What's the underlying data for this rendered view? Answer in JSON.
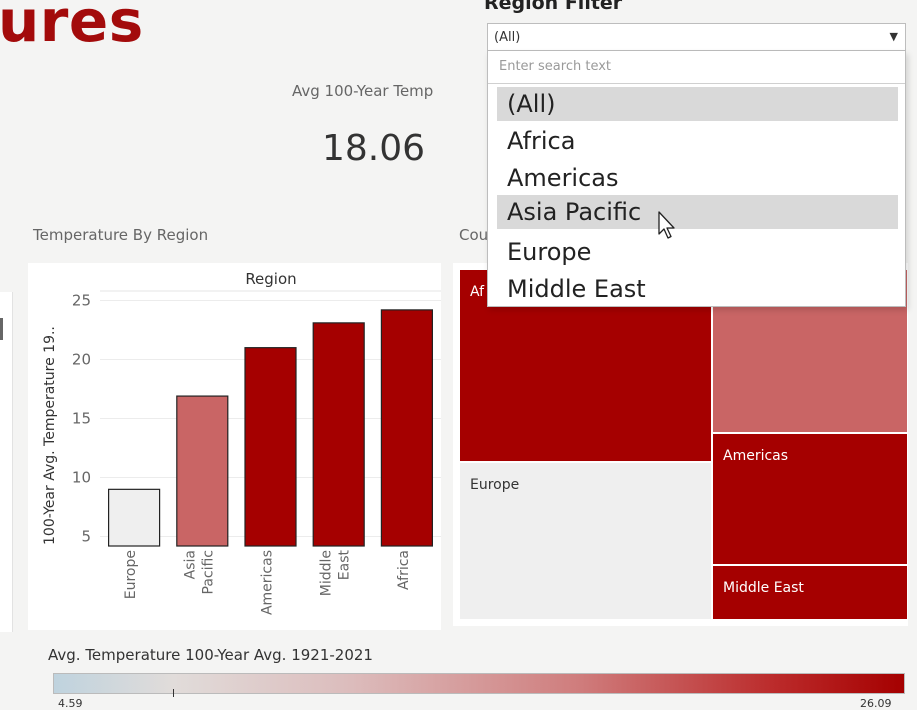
{
  "page": {
    "title_fragment": "ures"
  },
  "kpi": {
    "label": "Avg 100-Year Temp",
    "value": "18.06"
  },
  "bar_section": {
    "title": "Temperature By Region",
    "header": "Region",
    "y_axis_label": "100-Year Avg. Temperature 19.."
  },
  "treemap_section": {
    "title_fragment": "Cou"
  },
  "filter": {
    "title": "Region Filter",
    "selected": "(All)",
    "search_placeholder": "Enter search text",
    "options": [
      "(All)",
      "Africa",
      "Americas",
      "Asia Pacific",
      "Europe",
      "Middle East"
    ],
    "hovered": "Asia Pacific"
  },
  "legend": {
    "title": "Avg. Temperature 100-Year Avg. 1921-2021",
    "min_label": "4.59",
    "max_label": "26.09"
  },
  "colors": {
    "brand": "#a30b0b",
    "dark_red": "#a50000",
    "mid_red": "#c96565",
    "light": "#efefef"
  },
  "chart_data": [
    {
      "type": "bar",
      "categories": [
        "Europe",
        "Asia Pacific",
        "Americas",
        "Middle East",
        "Africa"
      ],
      "category_tick_lines": [
        [
          "Europe"
        ],
        [
          "Asia",
          "Pacific"
        ],
        [
          "Americas"
        ],
        [
          "Middle",
          "East"
        ],
        [
          "Africa"
        ]
      ],
      "values": [
        9.0,
        16.9,
        21.0,
        23.1,
        24.2
      ],
      "colors": [
        "#efefef",
        "#c96565",
        "#a50000",
        "#a50000",
        "#a50000"
      ],
      "ylabel": "100-Year Avg. Temperature 19..",
      "yticks": [
        5,
        10,
        15,
        20,
        25
      ],
      "ylim": [
        4.2,
        25.8
      ],
      "grid": true
    },
    {
      "type": "treemap",
      "cells": [
        {
          "name": "Africa",
          "label": "Af",
          "value": 24.2,
          "color": "#a50000",
          "text_color": "#ffffff"
        },
        {
          "name": "Asia Pacific",
          "label": "",
          "value": 16.9,
          "color": "#c96565",
          "text_color": "#ffffff"
        },
        {
          "name": "Americas",
          "label": "Americas",
          "value": 21.0,
          "color": "#a50000",
          "text_color": "#ffffff"
        },
        {
          "name": "Middle East",
          "label": "Middle East",
          "value": 23.1,
          "color": "#a50000",
          "text_color": "#ffffff"
        },
        {
          "name": "Europe",
          "label": "Europe",
          "value": 9.0,
          "color": "#efefef",
          "text_color": "#333333"
        }
      ]
    }
  ]
}
